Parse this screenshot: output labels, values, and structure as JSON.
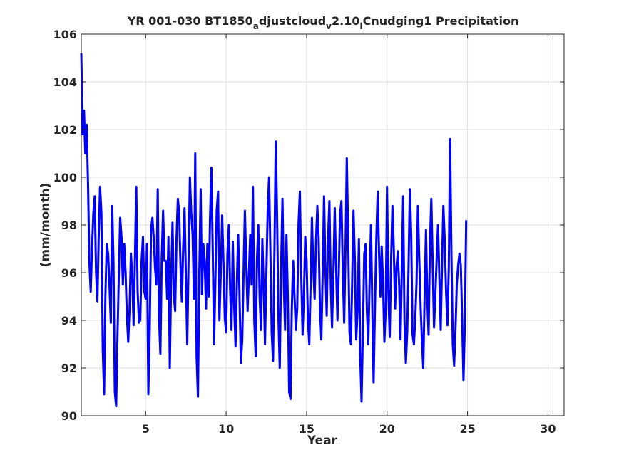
{
  "chart_data": {
    "type": "line",
    "title_parts": [
      {
        "text": "YR 001-030 BT1850",
        "sub": false
      },
      {
        "text": "a",
        "sub": true
      },
      {
        "text": "djustcloud",
        "sub": false
      },
      {
        "text": "v",
        "sub": true
      },
      {
        "text": "2.10",
        "sub": false
      },
      {
        "text": "l",
        "sub": true
      },
      {
        "text": "Cnudging1 Precipitation",
        "sub": false
      }
    ],
    "xlabel": "Year",
    "ylabel": "(mm/month)",
    "xlim": [
      1,
      31
    ],
    "ylim": [
      90,
      106
    ],
    "xticks": [
      5,
      10,
      15,
      20,
      25,
      30
    ],
    "yticks": [
      90,
      92,
      94,
      96,
      98,
      100,
      102,
      104,
      106
    ],
    "grid": true,
    "line_color": "#0000ff",
    "series": [
      {
        "x_start": 1.0,
        "x_step": 0.08333,
        "values": [
          105.2,
          101.8,
          102.8,
          101.0,
          102.2,
          99.8,
          96.5,
          95.2,
          97.0,
          98.5,
          99.2,
          96.0,
          94.8,
          97.5,
          99.6,
          98.5,
          92.8,
          90.9,
          95.0,
          97.2,
          96.8,
          95.5,
          93.9,
          98.8,
          96.5,
          91.0,
          90.4,
          93.4,
          96.0,
          98.3,
          97.5,
          95.5,
          97.2,
          96.0,
          94.2,
          93.1,
          94.5,
          96.8,
          95.8,
          93.8,
          96.5,
          99.6,
          95.2,
          93.9,
          94.0,
          96.5,
          97.5,
          95.2,
          94.9,
          97.2,
          90.9,
          93.5,
          97.8,
          98.3,
          97.5,
          96.2,
          95.5,
          99.5,
          94.0,
          92.6,
          96.6,
          98.6,
          96.5,
          96.5,
          94.9,
          97.5,
          92.0,
          95.8,
          98.1,
          95.0,
          94.4,
          97.4,
          99.1,
          98.5,
          96.2,
          94.8,
          97.1,
          98.7,
          95.8,
          93.0,
          96.5,
          100.0,
          98.5,
          97.6,
          94.9,
          101.0,
          92.5,
          90.8,
          96.0,
          99.5,
          95.1,
          97.2,
          96.5,
          94.5,
          97.2,
          95.0,
          98.2,
          100.4,
          97.0,
          93.0,
          95.6,
          98.6,
          99.4,
          94.0,
          96.0,
          98.4,
          96.5,
          94.1,
          93.5,
          96.8,
          98.0,
          95.3,
          93.6,
          97.3,
          94.6,
          92.9,
          95.5,
          97.6,
          95.0,
          92.2,
          93.2,
          95.9,
          98.6,
          96.4,
          94.4,
          96.0,
          97.6,
          95.5,
          99.6,
          94.0,
          92.5,
          96.5,
          98.0,
          95.0,
          93.6,
          97.4,
          95.5,
          93.0,
          95.9,
          98.6,
          100.0,
          97.0,
          93.5,
          92.3,
          96.8,
          101.5,
          98.3,
          94.2,
          92.0,
          96.2,
          99.1,
          95.5,
          93.6,
          97.6,
          95.0,
          91.0,
          90.7,
          94.5,
          96.5,
          95.0,
          93.6,
          94.5,
          98.0,
          99.4,
          96.0,
          93.4,
          95.0,
          97.5,
          96.5,
          94.0,
          93.0,
          95.5,
          98.3,
          96.2,
          94.9,
          97.3,
          98.8,
          97.5,
          94.5,
          93.2,
          96.0,
          99.2,
          96.3,
          94.2,
          97.4,
          99.0,
          95.5,
          93.7,
          96.0,
          98.7,
          96.2,
          94.0,
          96.1,
          98.5,
          99.0,
          96.1,
          93.9,
          97.0,
          100.8,
          97.5,
          93.5,
          93.0,
          95.7,
          98.6,
          96.5,
          93.2,
          94.4,
          97.4,
          92.5,
          90.6,
          93.6,
          96.8,
          97.2,
          94.4,
          93.0,
          95.6,
          98.0,
          94.5,
          91.4,
          94.6,
          97.4,
          99.4,
          96.8,
          95.0,
          97.1,
          95.6,
          93.1,
          94.5,
          99.6,
          95.2,
          93.3,
          96.5,
          98.8,
          97.0,
          94.5,
          96.2,
          96.9,
          95.5,
          93.2,
          96.0,
          99.2,
          94.0,
          92.2,
          93.5,
          96.1,
          99.5,
          97.6,
          93.4,
          93.0,
          94.0,
          95.6,
          98.8,
          96.6,
          94.6,
          93.2,
          92.0,
          95.0,
          97.8,
          94.8,
          93.4,
          97.2,
          99.1,
          96.4,
          93.7,
          95.0,
          96.6,
          98.0,
          95.8,
          93.6,
          96.3,
          98.8,
          97.4,
          95.2,
          93.8,
          96.2,
          101.6,
          96.8,
          93.0,
          92.1,
          93.6,
          95.5,
          96.3,
          96.8,
          96.3,
          94.0,
          91.5,
          93.8,
          98.2
        ]
      }
    ]
  }
}
